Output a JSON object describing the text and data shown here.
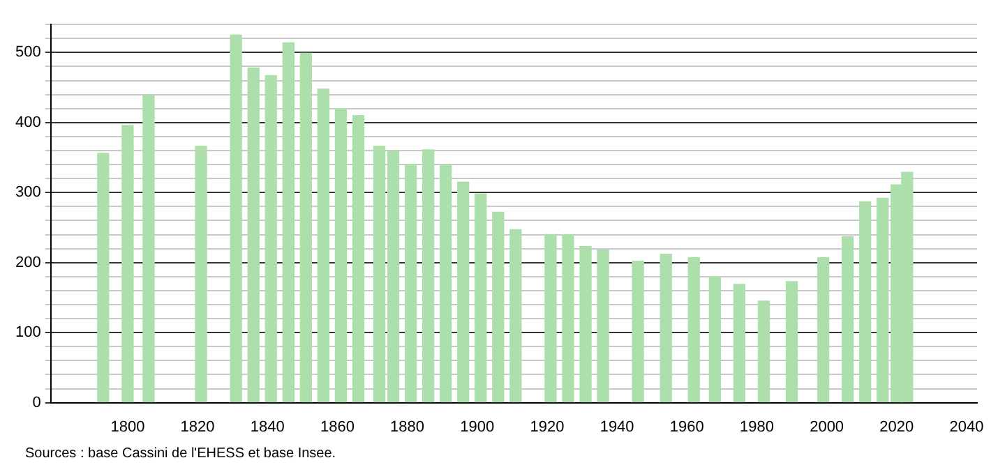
{
  "chart_data": {
    "type": "bar",
    "color": "#acdfac",
    "x": [
      1793,
      1800,
      1806,
      1821,
      1831,
      1836,
      1841,
      1846,
      1851,
      1856,
      1861,
      1866,
      1872,
      1876,
      1881,
      1886,
      1891,
      1896,
      1901,
      1906,
      1911,
      1921,
      1926,
      1931,
      1936,
      1946,
      1954,
      1962,
      1968,
      1975,
      1982,
      1990,
      1999,
      2006,
      2011,
      2016,
      2020,
      2023
    ],
    "values": [
      356,
      396,
      440,
      366,
      525,
      478,
      467,
      514,
      499,
      448,
      420,
      410,
      366,
      359,
      340,
      361,
      339,
      315,
      298,
      272,
      247,
      240,
      240,
      223,
      218,
      202,
      212,
      207,
      180,
      169,
      145,
      173,
      207,
      237,
      287,
      292,
      311,
      329
    ],
    "xlim": [
      1778,
      2043
    ],
    "xticks": [
      1800,
      1820,
      1840,
      1860,
      1880,
      1900,
      1920,
      1940,
      1960,
      1980,
      2000,
      2020,
      2040
    ],
    "ylim": [
      0,
      540
    ],
    "yticks": [
      0,
      {
        "value": 20,
        "label": null
      },
      {
        "value": 40,
        "label": null
      },
      {
        "value": 60,
        "label": null
      },
      {
        "value": 80,
        "label": null
      },
      100,
      {
        "value": 120,
        "label": null
      },
      {
        "value": 140,
        "label": null
      },
      {
        "value": 160,
        "label": null
      },
      {
        "value": 180,
        "label": null
      },
      200,
      {
        "value": 220,
        "label": null
      },
      {
        "value": 240,
        "label": null
      },
      {
        "value": 260,
        "label": null
      },
      {
        "value": 280,
        "label": null
      },
      300,
      {
        "value": 320,
        "label": null
      },
      {
        "value": 340,
        "label": null
      },
      {
        "value": 360,
        "label": null
      },
      {
        "value": 380,
        "label": null
      },
      400,
      {
        "value": 420,
        "label": null
      },
      {
        "value": 440,
        "label": null
      },
      {
        "value": 460,
        "label": null
      },
      {
        "value": 480,
        "label": null
      },
      500,
      {
        "value": 520,
        "label": null
      },
      {
        "value": 540,
        "label": null
      }
    ],
    "grid": "y",
    "annotations": [
      "Sources : base Cassini de l'EHESS et base Insee."
    ]
  }
}
